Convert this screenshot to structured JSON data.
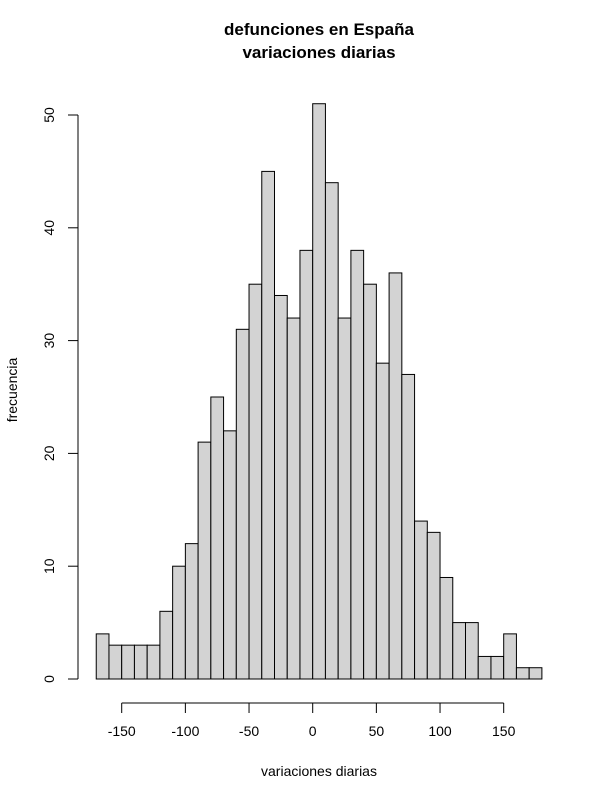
{
  "chart_data": {
    "type": "bar",
    "title": "defunciones en España",
    "subtitle": "variaciones diarias",
    "xlabel": "variaciones diarias",
    "ylabel": "frecuencia",
    "bin_width": 10,
    "bin_starts": [
      -170,
      -160,
      -150,
      -140,
      -130,
      -120,
      -110,
      -100,
      -90,
      -80,
      -70,
      -60,
      -50,
      -40,
      -30,
      -20,
      -10,
      0,
      10,
      20,
      30,
      40,
      50,
      60,
      70,
      80,
      90,
      100,
      110,
      120,
      130,
      140,
      150,
      160,
      170
    ],
    "values": [
      4,
      3,
      3,
      3,
      3,
      6,
      10,
      12,
      21,
      25,
      22,
      31,
      35,
      45,
      34,
      32,
      38,
      51,
      44,
      32,
      38,
      35,
      28,
      36,
      27,
      14,
      13,
      9,
      5,
      5,
      2,
      2,
      4,
      1,
      1
    ],
    "xticks": [
      -150,
      -100,
      -50,
      0,
      50,
      100,
      150
    ],
    "yticks": [
      0,
      10,
      20,
      30,
      40,
      50
    ],
    "xlim": [
      -170,
      180
    ],
    "ylim": [
      0,
      50
    ],
    "grid": false,
    "bar_color": "#d3d3d3",
    "edge_color": "#000000"
  }
}
